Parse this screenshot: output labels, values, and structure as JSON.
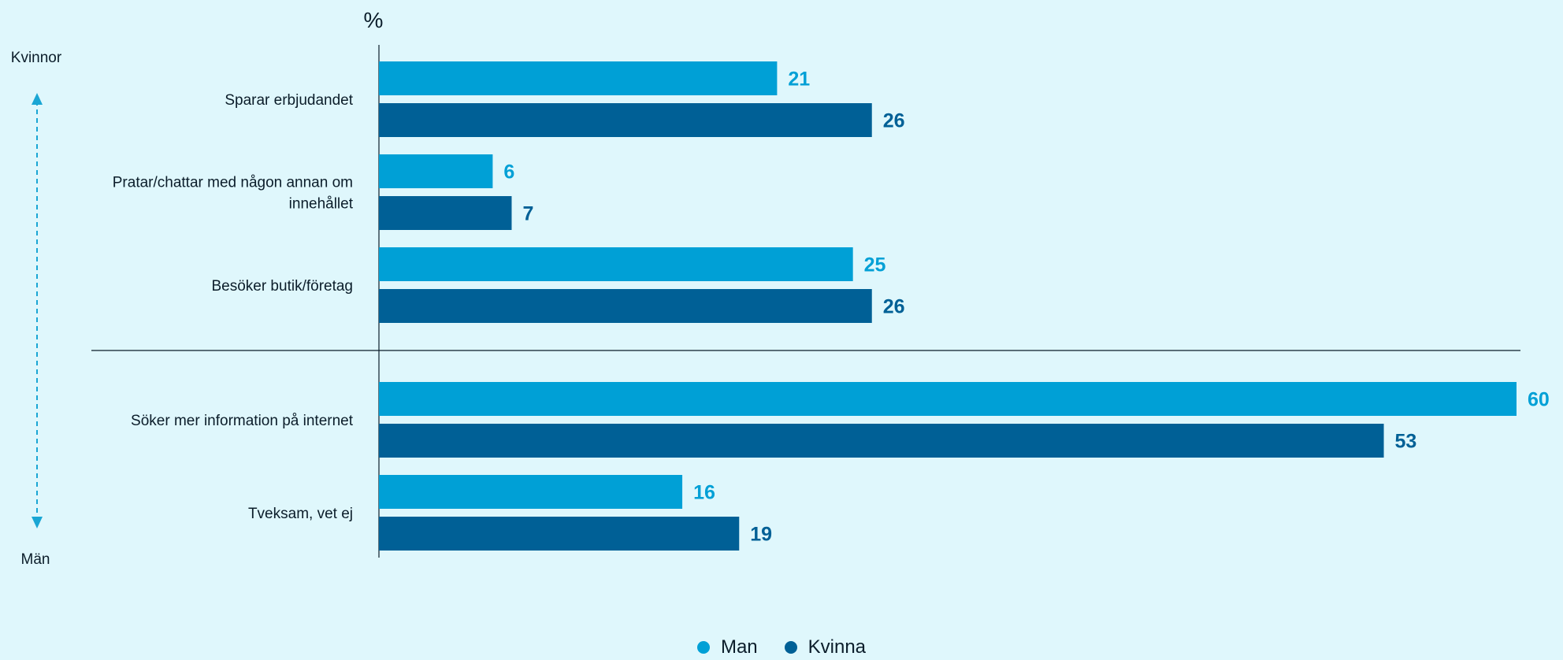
{
  "chart_data": {
    "type": "bar",
    "orientation": "horizontal",
    "unit_label": "%",
    "axis_top_label": "Kvinnor",
    "axis_bottom_label": "Män",
    "categories": [
      "Sparar erbjudandet",
      "Pratar/chattar med någon annan om innehållet",
      "Besöker butik/företag",
      "Söker mer information på internet",
      "Tveksam, vet ej"
    ],
    "series": [
      {
        "name": "Man",
        "color": "#00a0d6",
        "values": [
          21,
          6,
          25,
          60,
          16
        ]
      },
      {
        "name": "Kvinna",
        "color": "#006096",
        "values": [
          26,
          7,
          26,
          53,
          19
        ]
      }
    ],
    "xlim": [
      0,
      60
    ],
    "grid": false,
    "legend_position": "bottom-center",
    "group_divider_after_category_index": 2
  }
}
